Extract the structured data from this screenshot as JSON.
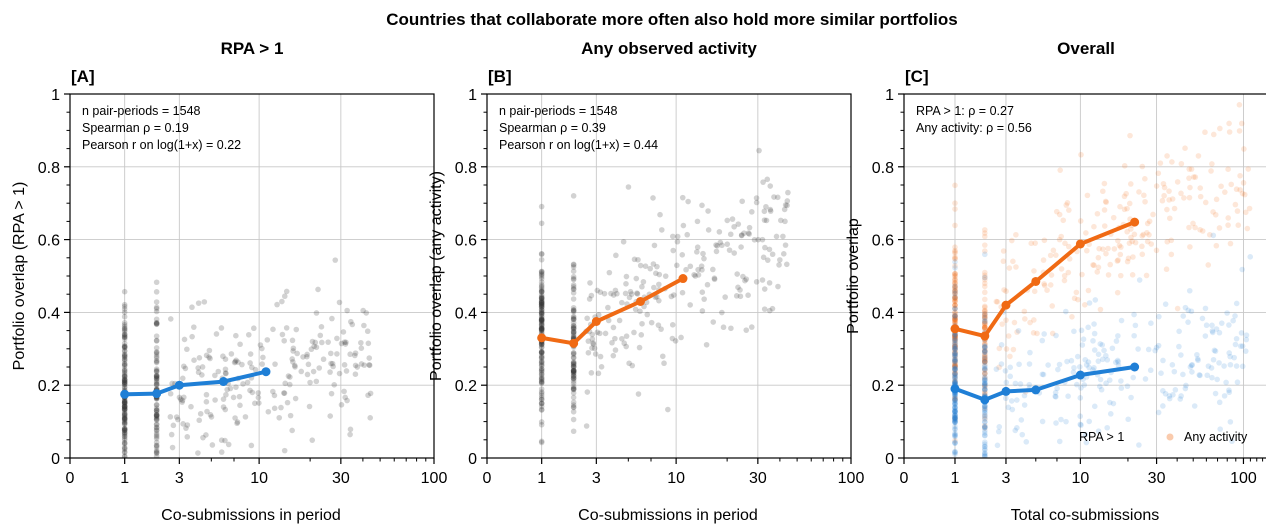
{
  "figure": {
    "title": "Countries that collaborate more often also hold more similar portfolios"
  },
  "colors": {
    "rpa": "#1f7fd6",
    "any": "#f06a14",
    "scatter": "#333333",
    "grid": "#c8c8c8"
  },
  "chart_data": [
    {
      "type": "scatter",
      "panel_label": "[A]",
      "title": "RPA > 1",
      "xlabel": "Co-submissions in period",
      "ylabel": "Portfolio overlap (RPA > 1)",
      "xscale": "log(1+x)",
      "xlim": [
        0,
        100
      ],
      "ylim": [
        0,
        1
      ],
      "xticks": [
        "0",
        "1",
        "3",
        "10",
        "30",
        "100"
      ],
      "yticks": [
        "0",
        "0.2",
        "0.4",
        "0.6",
        "0.8",
        "1"
      ],
      "grid": true,
      "annotations": [
        "n pair-periods = 1548",
        "Spearman ρ = 0.19",
        "Pearson r on log(1+x) = 0.22"
      ],
      "series": [
        {
          "kind": "binned-mean",
          "color": "rpa",
          "points": [
            [
              1,
              0.175
            ],
            [
              2,
              0.177
            ],
            [
              3,
              0.2
            ],
            [
              6,
              0.21
            ],
            [
              11,
              0.237
            ]
          ]
        }
      ]
    },
    {
      "type": "scatter",
      "panel_label": "[B]",
      "title": "Any observed activity",
      "xlabel": "Co-submissions in period",
      "ylabel": "Portfolio overlap (any activity)",
      "xscale": "log(1+x)",
      "xlim": [
        0,
        100
      ],
      "ylim": [
        0,
        1
      ],
      "xticks": [
        "0",
        "1",
        "3",
        "10",
        "30",
        "100"
      ],
      "yticks": [
        "0",
        "0.2",
        "0.4",
        "0.6",
        "0.8",
        "1"
      ],
      "grid": true,
      "annotations": [
        "n pair-periods = 1548",
        "Spearman ρ = 0.39",
        "Pearson r on log(1+x) = 0.44"
      ],
      "series": [
        {
          "kind": "binned-mean",
          "color": "any",
          "points": [
            [
              1,
              0.33
            ],
            [
              2,
              0.315
            ],
            [
              3,
              0.375
            ],
            [
              6,
              0.43
            ],
            [
              11,
              0.493
            ]
          ]
        }
      ]
    },
    {
      "type": "scatter",
      "panel_label": "[C]",
      "title": "Overall",
      "xlabel": "Total co-submissions",
      "ylabel": "Portfolio overlap",
      "xscale": "log(1+x)",
      "xlim": [
        0,
        140
      ],
      "ylim": [
        0,
        1
      ],
      "xticks": [
        "0",
        "1",
        "3",
        "10",
        "30",
        "100"
      ],
      "yticks": [
        "0",
        "0.2",
        "0.4",
        "0.6",
        "0.8",
        "1"
      ],
      "grid": true,
      "annotations": [
        "RPA > 1: ρ = 0.27",
        "Any activity: ρ = 0.56"
      ],
      "legend": {
        "placement": "lower-right",
        "entries": [
          "RPA > 1",
          "Any activity"
        ]
      },
      "series": [
        {
          "name": "RPA > 1",
          "kind": "binned-mean",
          "color": "rpa",
          "points": [
            [
              1,
              0.19
            ],
            [
              2,
              0.16
            ],
            [
              3,
              0.183
            ],
            [
              5,
              0.187
            ],
            [
              10,
              0.228
            ],
            [
              22,
              0.25
            ]
          ]
        },
        {
          "name": "Any activity",
          "kind": "binned-mean",
          "color": "any",
          "points": [
            [
              1,
              0.355
            ],
            [
              2,
              0.335
            ],
            [
              3,
              0.42
            ],
            [
              5,
              0.485
            ],
            [
              10,
              0.588
            ],
            [
              22,
              0.648
            ]
          ]
        }
      ]
    }
  ]
}
